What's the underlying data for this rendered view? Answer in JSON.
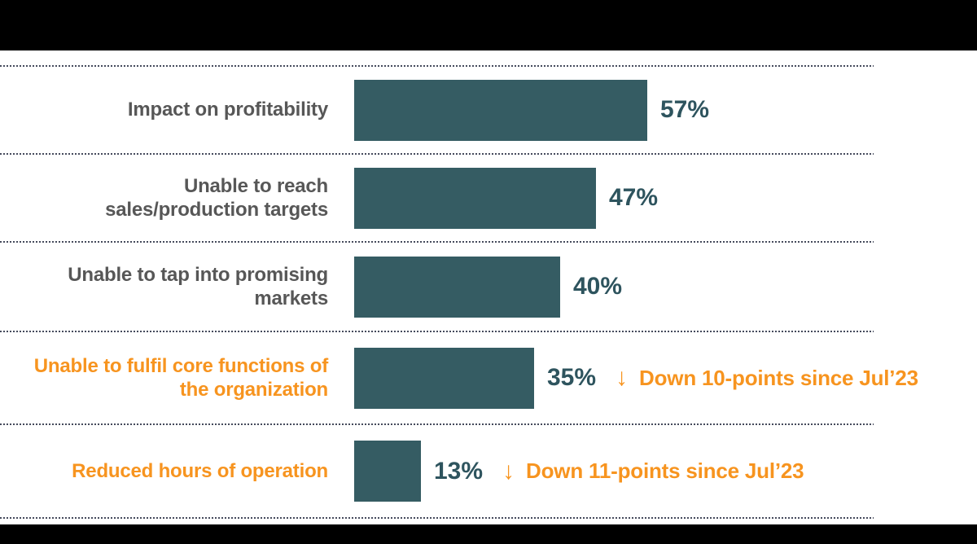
{
  "colors": {
    "background": "#FFFFFF",
    "bar": "#355C63",
    "value_text": "#2E545E",
    "label_gray": "#575757",
    "label_orange": "#F7941F",
    "gridline": "#454A5C",
    "band": "#000000"
  },
  "chart_data": {
    "type": "bar",
    "orientation": "horizontal",
    "title": "",
    "xlabel": "",
    "ylabel": "",
    "xlim": [
      0,
      100
    ],
    "grid": "dotted horizontal separators between categories",
    "legend": "none",
    "categories": [
      "Impact on profitability",
      "Unable to reach sales/production targets",
      "Unable to tap into promising markets",
      "Unable to fulfil core functions of the organization",
      "Reduced hours of operation"
    ],
    "values": [
      57,
      47,
      40,
      35,
      13
    ],
    "value_labels": [
      "57%",
      "47%",
      "40%",
      "35%",
      "13%"
    ],
    "rows": [
      {
        "label_lines": [
          "Impact on profitability"
        ],
        "value": 57,
        "value_label": "57%",
        "highlighted": false
      },
      {
        "label_lines": [
          "Unable to reach",
          "sales/production targets"
        ],
        "value": 47,
        "value_label": "47%",
        "highlighted": false
      },
      {
        "label_lines": [
          "Unable to tap into promising",
          "markets"
        ],
        "value": 40,
        "value_label": "40%",
        "highlighted": false
      },
      {
        "label_lines": [
          "Unable to fulfil core functions of",
          "the organization"
        ],
        "value": 35,
        "value_label": "35%",
        "highlighted": true,
        "arrow": "↓",
        "annotation": "Down 10-points since Jul’23"
      },
      {
        "label_lines": [
          "Reduced hours of operation"
        ],
        "value": 13,
        "value_label": "13%",
        "highlighted": true,
        "arrow": "↓",
        "annotation": "Down 11-points since Jul’23"
      }
    ]
  }
}
